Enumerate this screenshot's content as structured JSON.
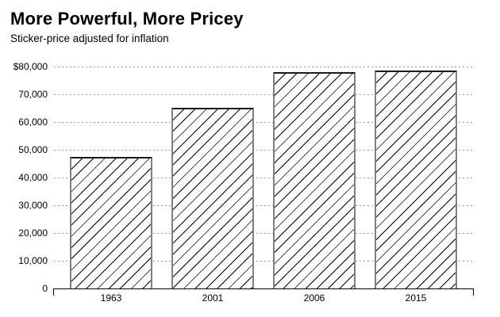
{
  "chart": {
    "title": "More Powerful, More Pricey",
    "subtitle": "Sticker-price adjusted for inflation"
  },
  "chart_data": {
    "type": "bar",
    "title": "More Powerful, More Pricey",
    "subtitle": "Sticker-price adjusted for inflation",
    "categories": [
      "1963",
      "2001",
      "2006",
      "2015"
    ],
    "values": [
      47300,
      65100,
      78000,
      78600
    ],
    "xlabel": "",
    "ylabel": "",
    "ylim": [
      0,
      80000
    ],
    "ytick_step": 10000,
    "ytick_labels": [
      "0",
      "10,000",
      "20,000",
      "30,000",
      "40,000",
      "50,000",
      "60,000",
      "70,000",
      "$80,000"
    ],
    "grid": "horizontal-dotted",
    "legend": "none",
    "bar_style": "white fill, black diagonal hatch, gray edges",
    "colors": {
      "text": "#000000",
      "gridline": "#999999",
      "axis": "#000000",
      "bar_edge": "#808080",
      "bar_edge_top": "#1c1c1c",
      "hatch": "#000000",
      "background": "#ffffff"
    }
  }
}
